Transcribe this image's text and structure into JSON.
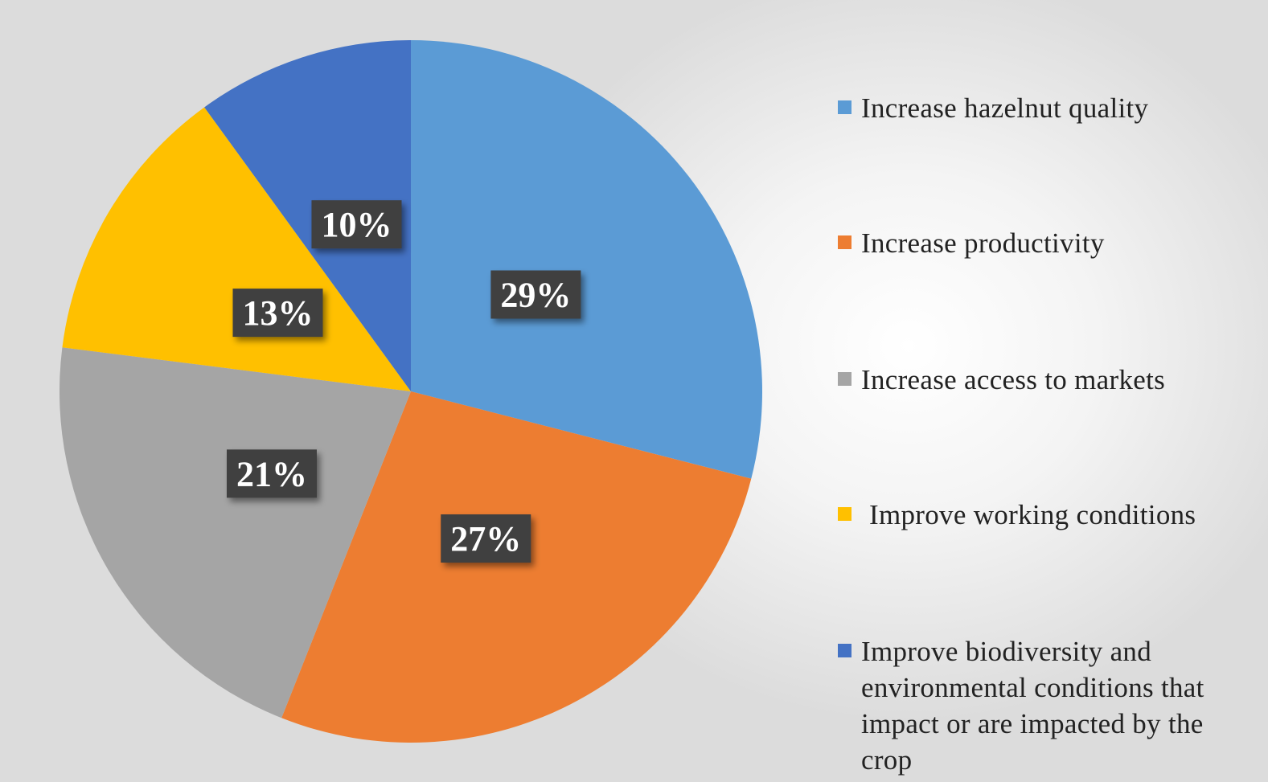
{
  "chart_data": {
    "type": "pie",
    "title": "",
    "categories": [
      "Increase hazelnut quality",
      "Increase productivity",
      "Increase access to markets",
      "Improve working conditions",
      "Improve biodiversity and environmental conditions that impact or are impacted by the crop"
    ],
    "values": [
      29,
      27,
      21,
      13,
      10
    ],
    "labels": [
      "29%",
      "27%",
      "21%",
      "13%",
      "10%"
    ],
    "colors": [
      "#5b9bd5",
      "#ed7d31",
      "#a5a5a5",
      "#ffc000",
      "#4472c4"
    ],
    "legend_position": "right",
    "data_label_style": "dark boxed percent labels"
  }
}
